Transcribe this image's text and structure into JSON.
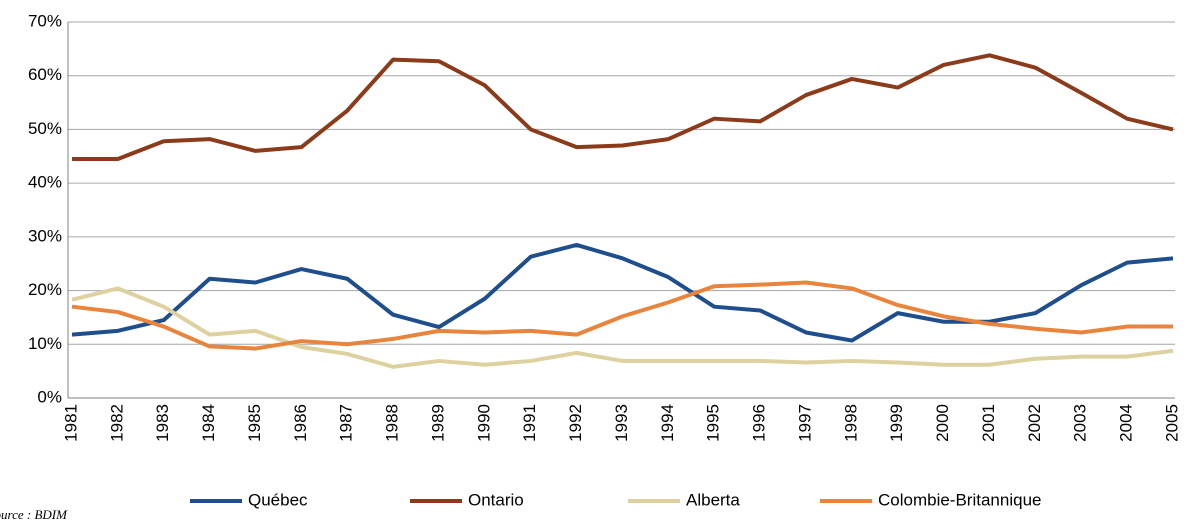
{
  "chart_data": {
    "type": "line",
    "categories": [
      "1981",
      "1982",
      "1983",
      "1984",
      "1985",
      "1986",
      "1987",
      "1988",
      "1989",
      "1990",
      "1991",
      "1992",
      "1993",
      "1994",
      "1995",
      "1996",
      "1997",
      "1998",
      "1999",
      "2000",
      "2001",
      "2002",
      "2003",
      "2004",
      "2005"
    ],
    "series": [
      {
        "name": "Québec",
        "color": "#1f4e8c",
        "values": [
          11.8,
          12.5,
          14.5,
          22.2,
          21.5,
          24,
          22.2,
          15.5,
          13.2,
          18.5,
          26.3,
          28.5,
          26,
          22.5,
          17,
          16.3,
          12.2,
          10.7,
          15.8,
          14.2,
          14.2,
          15.8,
          21,
          25.2,
          26
        ]
      },
      {
        "name": "Ontario",
        "color": "#8b3a1a",
        "values": [
          44.5,
          44.5,
          47.8,
          48.2,
          46,
          46.7,
          53.5,
          63,
          62.7,
          58.2,
          50,
          46.7,
          47,
          48.2,
          52,
          51.5,
          56.4,
          59.4,
          57.8,
          62,
          63.8,
          61.5,
          56.8,
          52,
          50
        ]
      },
      {
        "name": "Alberta",
        "color": "#ddd1a0",
        "values": [
          18.3,
          20.4,
          17,
          11.8,
          12.5,
          9.5,
          8.2,
          5.8,
          6.9,
          6.2,
          6.9,
          8.4,
          6.9,
          6.9,
          6.9,
          6.9,
          6.6,
          6.9,
          6.6,
          6.2,
          6.2,
          7.3,
          7.7,
          7.7,
          8.8
        ]
      },
      {
        "name": "Colombie-Britannique",
        "color": "#e8843c",
        "values": [
          17,
          16,
          13.3,
          9.6,
          9.2,
          10.6,
          10,
          11,
          12.5,
          12.2,
          12.5,
          11.8,
          15.2,
          17.8,
          20.8,
          21.1,
          21.5,
          20.4,
          17.3,
          15.2,
          13.8,
          12.9,
          12.2,
          13.3,
          13.3
        ]
      }
    ],
    "ylim": [
      0,
      70
    ],
    "yticks": [
      {
        "value": 0,
        "label": "0%"
      },
      {
        "value": 10,
        "label": "10%"
      },
      {
        "value": 20,
        "label": "20%"
      },
      {
        "value": 30,
        "label": "30%"
      },
      {
        "value": 40,
        "label": "40%"
      },
      {
        "value": 50,
        "label": "50%"
      },
      {
        "value": 60,
        "label": "60%"
      },
      {
        "value": 70,
        "label": "70%"
      }
    ],
    "grid": true,
    "legend": "bottom",
    "source": "Source : BDIM"
  }
}
